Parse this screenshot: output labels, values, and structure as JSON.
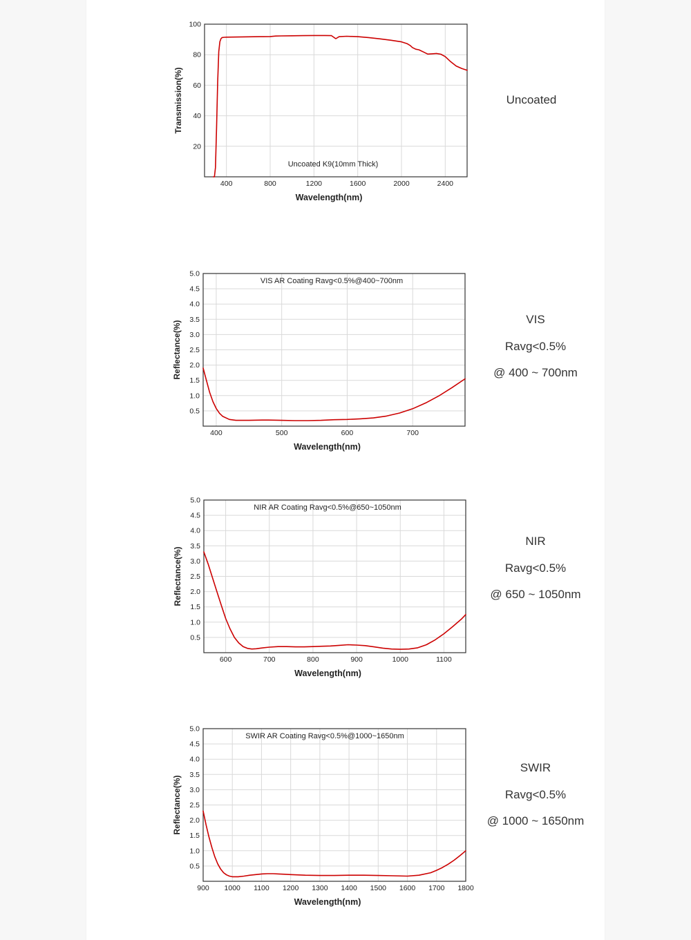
{
  "colors": {
    "curve": "#cc0000",
    "grid": "#d9d9d9",
    "frame": "#333333",
    "text": "#222222"
  },
  "charts": [
    {
      "id": "uncoated",
      "chart_data": {
        "type": "line",
        "title": "Uncoated K9(10mm Thick)",
        "xlabel": "Wavelength(nm)",
        "ylabel": "Transmission(%)",
        "xlim": [
          200,
          2600
        ],
        "ylim": [
          0,
          100
        ],
        "xticks": [
          400,
          800,
          1200,
          1600,
          2000,
          2400
        ],
        "yticks": [
          20,
          40,
          60,
          80,
          100
        ],
        "grid": true,
        "series": [
          {
            "x": [
              280,
              290,
              300,
              310,
              320,
              330,
              340,
              350,
              360,
              380,
              400,
              500,
              600,
              700,
              800,
              850,
              900,
              1000,
              1100,
              1200,
              1300,
              1360,
              1385,
              1400,
              1430,
              1500,
              1600,
              1700,
              1800,
              1900,
              2000,
              2050,
              2080,
              2100,
              2130,
              2160,
              2200,
              2240,
              2280,
              2320,
              2360,
              2400,
              2450,
              2500,
              2550,
              2600
            ],
            "y": [
              0,
              0,
              6,
              32,
              62,
              82,
              88.5,
              90.5,
              91.2,
              91.4,
              91.5,
              91.6,
              91.7,
              91.8,
              91.9,
              92.2,
              92.3,
              92.4,
              92.5,
              92.6,
              92.6,
              92.5,
              91.2,
              90.5,
              91.8,
              92.1,
              91.8,
              91.2,
              90.4,
              89.5,
              88.4,
              87.3,
              86.0,
              84.7,
              83.6,
              83.2,
              81.8,
              80.4,
              80.6,
              80.8,
              80.3,
              78.8,
              75.4,
              72.6,
              71.0,
              69.8
            ]
          }
        ]
      }
    },
    {
      "id": "vis",
      "chart_data": {
        "type": "line",
        "title": "VIS AR Coating Ravg<0.5%@400~700nm",
        "xlabel": "Wavelength(nm)",
        "ylabel": "Reflectance(%)",
        "xlim": [
          380,
          780
        ],
        "ylim": [
          0,
          5
        ],
        "xticks": [
          400,
          500,
          600,
          700
        ],
        "yticks": [
          0.5,
          1.0,
          1.5,
          2.0,
          2.5,
          3.0,
          3.5,
          4.0,
          4.5,
          5.0
        ],
        "grid": true,
        "series": [
          {
            "x": [
              380,
              385,
              390,
              395,
              400,
              405,
              410,
              420,
              430,
              450,
              470,
              480,
              500,
              520,
              540,
              560,
              580,
              600,
              620,
              640,
              660,
              680,
              700,
              720,
              740,
              760,
              780
            ],
            "y": [
              1.9,
              1.5,
              1.1,
              0.8,
              0.58,
              0.42,
              0.32,
              0.22,
              0.19,
              0.19,
              0.2,
              0.2,
              0.19,
              0.18,
              0.18,
              0.19,
              0.21,
              0.22,
              0.24,
              0.27,
              0.33,
              0.43,
              0.57,
              0.76,
              0.99,
              1.26,
              1.55
            ]
          }
        ]
      }
    },
    {
      "id": "nir",
      "chart_data": {
        "type": "line",
        "title": "NIR AR Coating Ravg<0.5%@650~1050nm",
        "xlabel": "Wavelength(nm)",
        "ylabel": "Reflectance(%)",
        "xlim": [
          550,
          1150
        ],
        "ylim": [
          0,
          5
        ],
        "xticks": [
          600,
          700,
          800,
          900,
          1000,
          1100
        ],
        "yticks": [
          0.5,
          1.0,
          1.5,
          2.0,
          2.5,
          3.0,
          3.5,
          4.0,
          4.5,
          5.0
        ],
        "grid": true,
        "series": [
          {
            "x": [
              550,
              560,
              570,
              580,
              590,
              600,
              610,
              620,
              630,
              640,
              650,
              660,
              670,
              680,
              700,
              720,
              740,
              760,
              780,
              800,
              820,
              840,
              860,
              880,
              900,
              920,
              940,
              960,
              980,
              1000,
              1020,
              1040,
              1060,
              1080,
              1100,
              1120,
              1140,
              1150
            ],
            "y": [
              3.3,
              2.9,
              2.45,
              2.0,
              1.55,
              1.12,
              0.78,
              0.5,
              0.32,
              0.2,
              0.14,
              0.12,
              0.13,
              0.15,
              0.18,
              0.2,
              0.2,
              0.19,
              0.19,
              0.2,
              0.21,
              0.22,
              0.24,
              0.26,
              0.25,
              0.23,
              0.19,
              0.15,
              0.12,
              0.11,
              0.12,
              0.16,
              0.26,
              0.42,
              0.62,
              0.85,
              1.1,
              1.25
            ]
          }
        ]
      }
    },
    {
      "id": "swir",
      "chart_data": {
        "type": "line",
        "title": "SWIR AR Coating Ravg<0.5%@1000~1650nm",
        "xlabel": "Wavelength(nm)",
        "ylabel": "Reflectance(%)",
        "xlim": [
          900,
          1800
        ],
        "ylim": [
          0,
          5
        ],
        "xticks": [
          900,
          1000,
          1100,
          1200,
          1300,
          1400,
          1500,
          1600,
          1700,
          1800
        ],
        "yticks": [
          0.5,
          1.0,
          1.5,
          2.0,
          2.5,
          3.0,
          3.5,
          4.0,
          4.5,
          5.0
        ],
        "grid": true,
        "series": [
          {
            "x": [
              900,
              910,
              920,
              930,
              940,
              950,
              960,
              970,
              980,
              990,
              1000,
              1020,
              1040,
              1060,
              1080,
              1100,
              1120,
              1140,
              1160,
              1180,
              1200,
              1250,
              1300,
              1350,
              1400,
              1450,
              1500,
              1550,
              1600,
              1640,
              1680,
              1700,
              1720,
              1740,
              1760,
              1780,
              1800
            ],
            "y": [
              2.3,
              1.85,
              1.45,
              1.1,
              0.8,
              0.57,
              0.4,
              0.28,
              0.21,
              0.17,
              0.15,
              0.15,
              0.17,
              0.2,
              0.22,
              0.24,
              0.25,
              0.25,
              0.24,
              0.23,
              0.22,
              0.2,
              0.19,
              0.19,
              0.2,
              0.2,
              0.19,
              0.18,
              0.17,
              0.2,
              0.28,
              0.36,
              0.45,
              0.56,
              0.69,
              0.84,
              1.0
            ]
          }
        ]
      }
    }
  ],
  "specs": [
    {
      "lines": [
        "Uncoated"
      ]
    },
    {
      "lines": [
        "VIS",
        "Ravg<0.5%",
        "@ 400 ~ 700nm"
      ]
    },
    {
      "lines": [
        "NIR",
        "Ravg<0.5%",
        "@ 650 ~ 1050nm"
      ]
    },
    {
      "lines": [
        "SWIR",
        "Ravg<0.5%",
        "@ 1000 ~ 1650nm"
      ]
    }
  ]
}
